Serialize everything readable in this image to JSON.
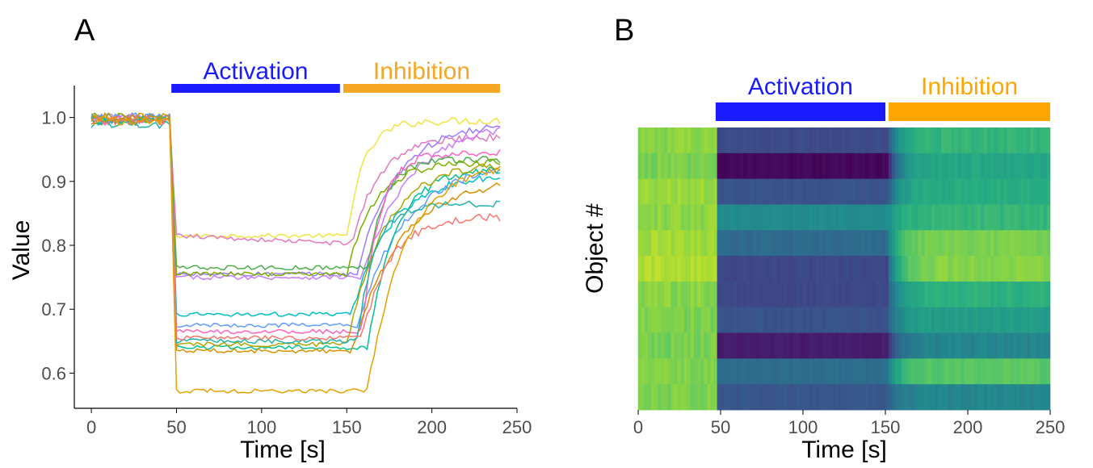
{
  "panels": {
    "a_label": "A",
    "b_label": "B"
  },
  "colors": {
    "activation": "#1a1aff",
    "inhibition": "#ffa500"
  },
  "chart_data": [
    {
      "type": "line",
      "panel": "A",
      "xlabel": "Time [s]",
      "ylabel": "Value",
      "xlim": [
        -10,
        250
      ],
      "ylim": [
        0.545,
        1.05
      ],
      "xticks": [
        0,
        50,
        100,
        150,
        200,
        250
      ],
      "yticks": [
        0.6,
        0.7,
        0.8,
        0.9,
        1.0
      ],
      "grid": false,
      "phases": [
        {
          "label": "Activation",
          "start": 47,
          "end": 146,
          "color": "#1a1aff"
        },
        {
          "label": "Inhibition",
          "start": 148,
          "end": 240,
          "color": "#f5a623"
        }
      ],
      "series": [
        {
          "color": "#f0e442",
          "start": 0.995,
          "act": 0.815,
          "recover": 0.995
        },
        {
          "color": "#e377c2",
          "start": 0.995,
          "act": 0.815,
          "act_end": 0.803,
          "recover": 0.97
        },
        {
          "color": "#9c7bff",
          "start": 1.0,
          "act": 0.755,
          "recover": 0.99
        },
        {
          "color": "#c77cff",
          "start": 1.0,
          "act": 0.75,
          "recover": 0.995
        },
        {
          "color": "#4daf4a",
          "start": 0.995,
          "act": 0.765,
          "recover": 0.935
        },
        {
          "color": "#7cae00",
          "start": 1.0,
          "act": 0.755,
          "recover": 0.93
        },
        {
          "color": "#00bfc4",
          "start": 0.995,
          "act": 0.692,
          "recover": 0.91
        },
        {
          "color": "#619cff",
          "start": 1.0,
          "act": 0.675,
          "recover": 0.93
        },
        {
          "color": "#ff61c3",
          "start": 0.995,
          "act": 0.665,
          "recover": 0.945
        },
        {
          "color": "#00c094",
          "start": 0.995,
          "act": 0.64,
          "recover": 0.92
        },
        {
          "color": "#aea400",
          "start": 0.995,
          "act": 0.645,
          "recover": 0.93
        },
        {
          "color": "#d89000",
          "start": 1.0,
          "act": 0.635,
          "recover": 0.905
        },
        {
          "color": "#20b2aa",
          "start": 0.99,
          "act": 0.65,
          "recover": 0.865
        },
        {
          "color": "#f8766d",
          "start": 0.995,
          "act": 0.655,
          "recover": 0.845
        },
        {
          "color": "#e69f00",
          "start": 0.995,
          "act": 0.572,
          "recover": 0.93
        }
      ]
    },
    {
      "type": "heatmap",
      "panel": "B",
      "xlabel": "Time [s]",
      "ylabel": "Object #",
      "xlim": [
        0,
        250
      ],
      "xticks": [
        0,
        50,
        100,
        150,
        200,
        250
      ],
      "grid": false,
      "phases": [
        {
          "label": "Activation",
          "start": 47,
          "end": 150,
          "color": "#1a1aff"
        },
        {
          "label": "Inhibition",
          "start": 152,
          "end": 250,
          "color": "#ffa500"
        }
      ],
      "rows": [
        {
          "pre": 0.82,
          "act": 0.23,
          "post": 0.66
        },
        {
          "pre": 0.8,
          "act": 0.02,
          "post": 0.6
        },
        {
          "pre": 0.85,
          "act": 0.26,
          "post": 0.62
        },
        {
          "pre": 0.83,
          "act": 0.48,
          "post": 0.66
        },
        {
          "pre": 0.86,
          "act": 0.35,
          "post": 0.8
        },
        {
          "pre": 0.88,
          "act": 0.22,
          "post": 0.82
        },
        {
          "pre": 0.82,
          "act": 0.22,
          "post": 0.64
        },
        {
          "pre": 0.8,
          "act": 0.26,
          "post": 0.56
        },
        {
          "pre": 0.79,
          "act": 0.08,
          "post": 0.46
        },
        {
          "pre": 0.81,
          "act": 0.36,
          "post": 0.74
        },
        {
          "pre": 0.8,
          "act": 0.27,
          "post": 0.46
        }
      ]
    }
  ]
}
